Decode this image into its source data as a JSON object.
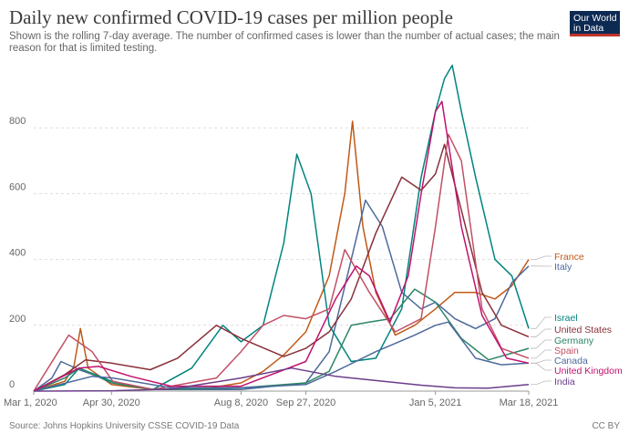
{
  "header": {
    "title": "Daily new confirmed COVID-19 cases per million people",
    "subtitle": "Shown is the rolling 7-day average. The number of confirmed cases is lower than the number of actual cases; the main reason for that is limited testing."
  },
  "logo": {
    "line1": "Our World",
    "line2": "in Data"
  },
  "footer": {
    "source": "Source: Johns Hopkins University CSSE COVID-19 Data",
    "license": "CC BY"
  },
  "colors": {
    "France": "#b13507",
    "Italy": "#4c6a9c",
    "Israel": "#00847e",
    "United States": "#883039",
    "Germany": "#2c8465",
    "Spain": "#c15065",
    "Canada": "#4c6a9c",
    "United Kingdom": "#b13507",
    "India": "#883039"
  },
  "chart_data": {
    "type": "line",
    "title": "Daily new confirmed COVID-19 cases per million people",
    "xlabel": "",
    "ylabel": "",
    "ylim": [
      0,
      1000
    ],
    "yticks": [
      0,
      200,
      400,
      600,
      800
    ],
    "xlim": [
      "2020-03-01",
      "2021-03-18"
    ],
    "xticks": [
      "Mar 1, 2020",
      "Apr 30, 2020",
      "Aug 8, 2020",
      "Sep 27, 2020",
      "Jan 5, 2021",
      "Mar 18, 2021"
    ],
    "xtick_dates": [
      "2020-03-01",
      "2020-04-30",
      "2020-08-08",
      "2020-09-27",
      "2021-01-05",
      "2021-03-18"
    ],
    "grid": true,
    "legend": "right",
    "series": [
      {
        "name": "France",
        "color": "#c05917",
        "x": [
          "2020-03-01",
          "2020-03-25",
          "2020-04-01",
          "2020-04-06",
          "2020-04-12",
          "2020-04-30",
          "2020-06-01",
          "2020-07-15",
          "2020-08-08",
          "2020-08-25",
          "2020-09-10",
          "2020-09-27",
          "2020-10-15",
          "2020-10-27",
          "2020-11-02",
          "2020-11-10",
          "2020-11-20",
          "2020-12-05",
          "2020-12-20",
          "2021-01-05",
          "2021-01-20",
          "2021-02-05",
          "2021-02-20",
          "2021-03-05",
          "2021-03-18"
        ],
        "y": [
          0,
          30,
          75,
          190,
          70,
          20,
          5,
          10,
          25,
          60,
          110,
          180,
          350,
          600,
          820,
          500,
          300,
          170,
          200,
          250,
          300,
          300,
          280,
          320,
          400
        ]
      },
      {
        "name": "Italy",
        "color": "#4c6a9c",
        "x": [
          "2020-03-01",
          "2020-03-15",
          "2020-03-22",
          "2020-04-05",
          "2020-04-30",
          "2020-06-01",
          "2020-08-08",
          "2020-09-27",
          "2020-10-15",
          "2020-11-01",
          "2020-11-12",
          "2020-11-25",
          "2020-12-10",
          "2020-12-25",
          "2021-01-05",
          "2021-01-20",
          "2021-02-05",
          "2021-02-20",
          "2021-03-05",
          "2021-03-18"
        ],
        "y": [
          0,
          40,
          90,
          65,
          30,
          5,
          5,
          25,
          120,
          400,
          580,
          500,
          300,
          250,
          270,
          220,
          190,
          220,
          330,
          380
        ]
      },
      {
        "name": "Israel",
        "color": "#00847e",
        "x": [
          "2020-03-01",
          "2020-03-25",
          "2020-04-05",
          "2020-04-30",
          "2020-06-01",
          "2020-07-01",
          "2020-07-25",
          "2020-08-08",
          "2020-08-25",
          "2020-09-10",
          "2020-09-20",
          "2020-10-01",
          "2020-10-15",
          "2020-11-01",
          "2020-11-20",
          "2020-12-10",
          "2020-12-25",
          "2021-01-05",
          "2021-01-12",
          "2021-01-18",
          "2021-01-25",
          "2021-02-05",
          "2021-02-20",
          "2021-03-05",
          "2021-03-18"
        ],
        "y": [
          0,
          20,
          70,
          30,
          5,
          70,
          200,
          150,
          200,
          450,
          720,
          600,
          200,
          90,
          100,
          250,
          650,
          850,
          950,
          990,
          850,
          650,
          400,
          350,
          190
        ]
      },
      {
        "name": "United States",
        "color": "#883039",
        "x": [
          "2020-03-01",
          "2020-03-25",
          "2020-04-10",
          "2020-04-30",
          "2020-05-30",
          "2020-06-20",
          "2020-07-20",
          "2020-08-08",
          "2020-09-10",
          "2020-09-27",
          "2020-10-15",
          "2020-11-01",
          "2020-11-20",
          "2020-12-10",
          "2020-12-25",
          "2021-01-05",
          "2021-01-12",
          "2021-01-25",
          "2021-02-10",
          "2021-02-25",
          "2021-03-18"
        ],
        "y": [
          0,
          50,
          95,
          85,
          65,
          100,
          200,
          160,
          105,
          130,
          180,
          280,
          480,
          650,
          610,
          660,
          750,
          550,
          300,
          200,
          165
        ]
      },
      {
        "name": "Germany",
        "color": "#2c8465",
        "x": [
          "2020-03-01",
          "2020-03-25",
          "2020-04-05",
          "2020-04-30",
          "2020-06-01",
          "2020-08-08",
          "2020-09-27",
          "2020-10-15",
          "2020-11-01",
          "2020-11-15",
          "2020-12-01",
          "2020-12-20",
          "2021-01-05",
          "2021-01-25",
          "2021-02-15",
          "2021-03-18"
        ],
        "y": [
          0,
          40,
          70,
          25,
          5,
          10,
          25,
          60,
          200,
          210,
          220,
          310,
          270,
          160,
          95,
          130
        ]
      },
      {
        "name": "Spain",
        "color": "#c15065",
        "x": [
          "2020-03-01",
          "2020-03-20",
          "2020-03-28",
          "2020-04-15",
          "2020-05-01",
          "2020-06-01",
          "2020-07-20",
          "2020-08-08",
          "2020-08-25",
          "2020-09-10",
          "2020-09-27",
          "2020-10-15",
          "2020-10-27",
          "2020-11-15",
          "2020-12-05",
          "2020-12-25",
          "2021-01-05",
          "2021-01-15",
          "2021-01-25",
          "2021-02-10",
          "2021-02-25",
          "2021-03-18"
        ],
        "y": [
          0,
          120,
          170,
          120,
          30,
          5,
          40,
          120,
          200,
          230,
          220,
          250,
          430,
          300,
          180,
          220,
          500,
          780,
          700,
          250,
          130,
          100
        ]
      },
      {
        "name": "Canada",
        "color": "#4c6a9c",
        "x": [
          "2020-03-01",
          "2020-04-15",
          "2020-05-01",
          "2020-06-15",
          "2020-08-08",
          "2020-09-27",
          "2020-10-20",
          "2020-11-20",
          "2020-12-20",
          "2021-01-05",
          "2021-01-15",
          "2021-02-05",
          "2021-02-25",
          "2021-03-18"
        ],
        "y": [
          0,
          45,
          40,
          10,
          10,
          20,
          60,
          120,
          170,
          200,
          210,
          100,
          80,
          85
        ]
      },
      {
        "name": "United Kingdom",
        "color": "#c0126e",
        "x": [
          "2020-03-01",
          "2020-04-05",
          "2020-04-20",
          "2020-05-15",
          "2020-06-15",
          "2020-08-08",
          "2020-09-27",
          "2020-10-20",
          "2020-11-05",
          "2020-11-15",
          "2020-12-01",
          "2020-12-15",
          "2020-12-25",
          "2021-01-05",
          "2021-01-10",
          "2021-01-25",
          "2021-02-10",
          "2021-03-01",
          "2021-03-18"
        ],
        "y": [
          0,
          70,
          75,
          45,
          15,
          15,
          90,
          280,
          380,
          350,
          210,
          350,
          600,
          850,
          880,
          500,
          230,
          100,
          85
        ]
      },
      {
        "name": "India",
        "color": "#6b3d8a",
        "x": [
          "2020-03-01",
          "2020-05-01",
          "2020-06-15",
          "2020-08-08",
          "2020-09-16",
          "2020-10-20",
          "2020-11-20",
          "2020-12-25",
          "2021-01-20",
          "2021-02-15",
          "2021-03-18"
        ],
        "y": [
          0,
          1,
          6,
          40,
          70,
          45,
          32,
          18,
          10,
          9,
          20
        ]
      }
    ]
  }
}
